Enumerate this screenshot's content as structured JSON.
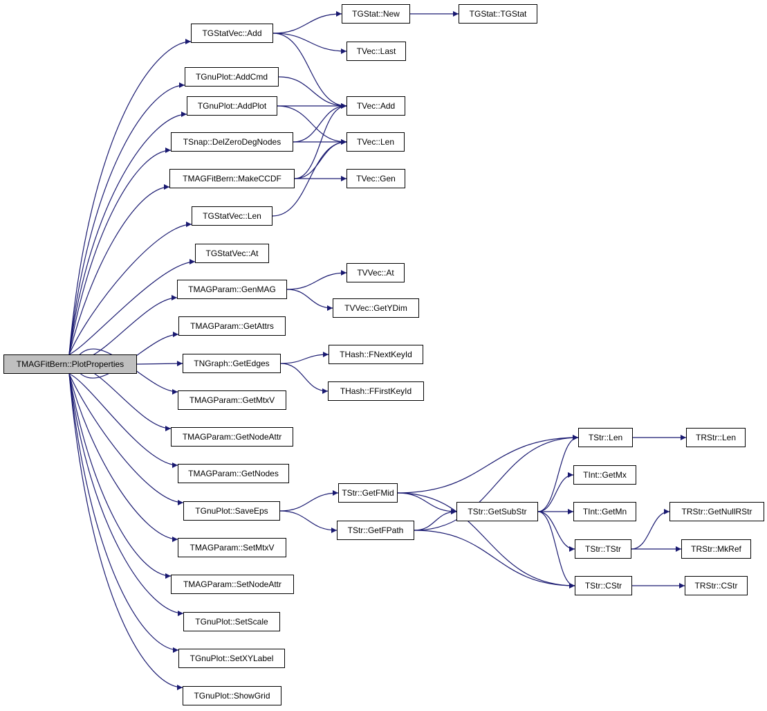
{
  "root": "TMAGFitBern::PlotProperties",
  "colors": {
    "edge": "#191970",
    "root_fill": "#bfbfbf",
    "node_border": "#000000"
  },
  "nodes": [
    "TMAGFitBern::PlotProperties",
    "TGStatVec::Add",
    "TGStat::New",
    "TGStat::TGStat",
    "TVec::Last",
    "TGnuPlot::AddCmd",
    "TVec::Add",
    "TGnuPlot::AddPlot",
    "TSnap::DelZeroDegNodes",
    "TVec::Len",
    "TMAGFitBern::MakeCCDF",
    "TVec::Gen",
    "TGStatVec::Len",
    "TGStatVec::At",
    "TMAGParam::GenMAG",
    "TVVec::At",
    "TVVec::GetYDim",
    "TMAGParam::GetAttrs",
    "TNGraph::GetEdges",
    "THash::FNextKeyId",
    "THash::FFirstKeyId",
    "TMAGParam::GetMtxV",
    "TMAGParam::GetNodeAttr",
    "TMAGParam::GetNodes",
    "TGnuPlot::SaveEps",
    "TMAGParam::SetMtxV",
    "TMAGParam::SetNodeAttr",
    "TGnuPlot::SetScale",
    "TGnuPlot::SetXYLabel",
    "TGnuPlot::ShowGrid",
    "TStr::GetFMid",
    "TStr::GetFPath",
    "TStr::GetSubStr",
    "TStr::Len",
    "TInt::GetMx",
    "TInt::GetMn",
    "TStr::TStr",
    "TStr::CStr",
    "TRStr::Len",
    "TRStr::GetNullRStr",
    "TRStr::MkRef",
    "TRStr::CStr"
  ],
  "edges": [
    [
      "TMAGFitBern::PlotProperties",
      "TGStatVec::Add"
    ],
    [
      "TMAGFitBern::PlotProperties",
      "TGnuPlot::AddCmd"
    ],
    [
      "TMAGFitBern::PlotProperties",
      "TGnuPlot::AddPlot"
    ],
    [
      "TMAGFitBern::PlotProperties",
      "TSnap::DelZeroDegNodes"
    ],
    [
      "TMAGFitBern::PlotProperties",
      "TMAGFitBern::MakeCCDF"
    ],
    [
      "TMAGFitBern::PlotProperties",
      "TGStatVec::Len"
    ],
    [
      "TMAGFitBern::PlotProperties",
      "TGStatVec::At"
    ],
    [
      "TMAGFitBern::PlotProperties",
      "TMAGParam::GenMAG"
    ],
    [
      "TMAGFitBern::PlotProperties",
      "TMAGParam::GetAttrs"
    ],
    [
      "TMAGFitBern::PlotProperties",
      "TNGraph::GetEdges"
    ],
    [
      "TMAGFitBern::PlotProperties",
      "TMAGParam::GetMtxV"
    ],
    [
      "TMAGFitBern::PlotProperties",
      "TMAGParam::GetNodeAttr"
    ],
    [
      "TMAGFitBern::PlotProperties",
      "TMAGParam::GetNodes"
    ],
    [
      "TMAGFitBern::PlotProperties",
      "TGnuPlot::SaveEps"
    ],
    [
      "TMAGFitBern::PlotProperties",
      "TMAGParam::SetMtxV"
    ],
    [
      "TMAGFitBern::PlotProperties",
      "TMAGParam::SetNodeAttr"
    ],
    [
      "TMAGFitBern::PlotProperties",
      "TGnuPlot::SetScale"
    ],
    [
      "TMAGFitBern::PlotProperties",
      "TGnuPlot::SetXYLabel"
    ],
    [
      "TMAGFitBern::PlotProperties",
      "TGnuPlot::ShowGrid"
    ],
    [
      "TGStatVec::Add",
      "TGStat::New"
    ],
    [
      "TGStat::New",
      "TGStat::TGStat"
    ],
    [
      "TGStatVec::Add",
      "TVec::Last"
    ],
    [
      "TGStatVec::Add",
      "TVec::Add"
    ],
    [
      "TGnuPlot::AddCmd",
      "TVec::Add"
    ],
    [
      "TGnuPlot::AddPlot",
      "TVec::Add"
    ],
    [
      "TGnuPlot::AddPlot",
      "TVec::Len"
    ],
    [
      "TSnap::DelZeroDegNodes",
      "TVec::Add"
    ],
    [
      "TSnap::DelZeroDegNodes",
      "TVec::Len"
    ],
    [
      "TMAGFitBern::MakeCCDF",
      "TVec::Add"
    ],
    [
      "TMAGFitBern::MakeCCDF",
      "TVec::Len"
    ],
    [
      "TMAGFitBern::MakeCCDF",
      "TVec::Gen"
    ],
    [
      "TGStatVec::Len",
      "TVec::Len"
    ],
    [
      "TMAGParam::GenMAG",
      "TVVec::At"
    ],
    [
      "TMAGParam::GenMAG",
      "TVVec::GetYDim"
    ],
    [
      "TNGraph::GetEdges",
      "THash::FNextKeyId"
    ],
    [
      "TNGraph::GetEdges",
      "THash::FFirstKeyId"
    ],
    [
      "TGnuPlot::SaveEps",
      "TStr::GetFMid"
    ],
    [
      "TGnuPlot::SaveEps",
      "TStr::GetFPath"
    ],
    [
      "TStr::GetFMid",
      "TStr::Len"
    ],
    [
      "TStr::GetFMid",
      "TStr::GetSubStr"
    ],
    [
      "TStr::GetFMid",
      "TStr::CStr"
    ],
    [
      "TStr::GetFPath",
      "TStr::Len"
    ],
    [
      "TStr::GetFPath",
      "TStr::GetSubStr"
    ],
    [
      "TStr::GetFPath",
      "TStr::CStr"
    ],
    [
      "TStr::GetSubStr",
      "TStr::Len"
    ],
    [
      "TStr::GetSubStr",
      "TInt::GetMx"
    ],
    [
      "TStr::GetSubStr",
      "TInt::GetMn"
    ],
    [
      "TStr::GetSubStr",
      "TStr::TStr"
    ],
    [
      "TStr::GetSubStr",
      "TStr::CStr"
    ],
    [
      "TStr::Len",
      "TRStr::Len"
    ],
    [
      "TStr::TStr",
      "TRStr::GetNullRStr"
    ],
    [
      "TStr::TStr",
      "TRStr::MkRef"
    ],
    [
      "TStr::CStr",
      "TRStr::CStr"
    ]
  ]
}
